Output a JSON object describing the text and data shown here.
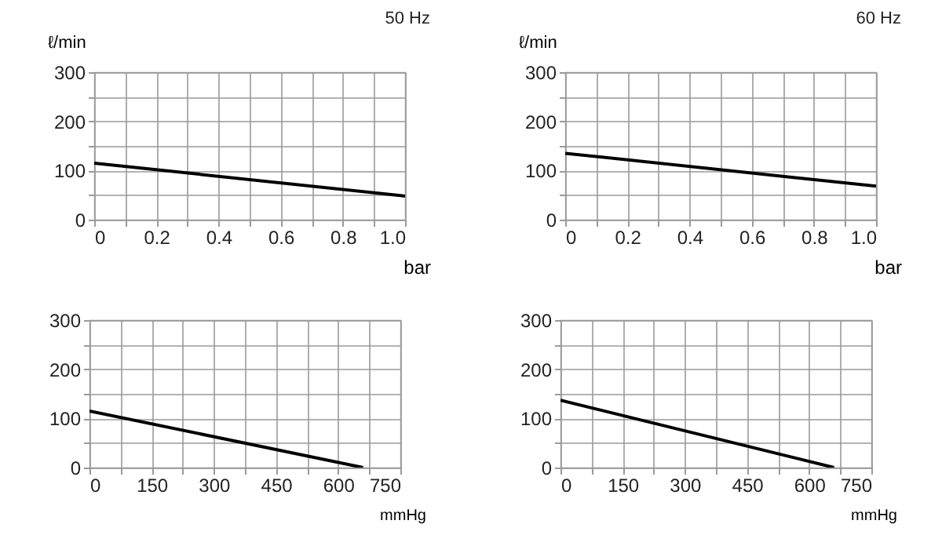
{
  "chart_data": [
    {
      "type": "line",
      "title": "50 Hz",
      "ylabel": "ℓ/min",
      "xlabel": "bar",
      "x": [
        0,
        1.0
      ],
      "series": [
        {
          "color": "#000000",
          "values": [
            115,
            48
          ]
        }
      ],
      "xlim": [
        0,
        1.0
      ],
      "ylim": [
        0,
        300
      ],
      "xticks": [
        0,
        {
          "value": 0.1,
          "label": null
        },
        0.2,
        {
          "value": 0.3,
          "label": null
        },
        0.4,
        {
          "value": 0.5,
          "label": null
        },
        0.6,
        {
          "value": 0.7,
          "label": null
        },
        0.8,
        {
          "value": 0.9,
          "label": null
        },
        "1.0"
      ],
      "yticks": [
        0,
        {
          "value": 50,
          "label": null
        },
        100,
        {
          "value": 150,
          "label": null
        },
        200,
        {
          "value": 250,
          "label": null
        },
        300
      ],
      "grid": true
    },
    {
      "type": "line",
      "title": "60 Hz",
      "ylabel": "ℓ/min",
      "xlabel": "bar",
      "x": [
        0,
        1.0
      ],
      "series": [
        {
          "color": "#000000",
          "values": [
            135,
            68
          ]
        }
      ],
      "xlim": [
        0,
        1.0
      ],
      "ylim": [
        0,
        300
      ],
      "xticks": [
        0,
        {
          "value": 0.1,
          "label": null
        },
        0.2,
        {
          "value": 0.3,
          "label": null
        },
        0.4,
        {
          "value": 0.5,
          "label": null
        },
        0.6,
        {
          "value": 0.7,
          "label": null
        },
        0.8,
        {
          "value": 0.9,
          "label": null
        },
        "1.0"
      ],
      "yticks": [
        0,
        {
          "value": 50,
          "label": null
        },
        100,
        {
          "value": 150,
          "label": null
        },
        200,
        {
          "value": 250,
          "label": null
        },
        300
      ],
      "grid": true
    },
    {
      "type": "line",
      "xlabel": "mmHg",
      "x": [
        0,
        660
      ],
      "series": [
        {
          "color": "#000000",
          "values": [
            115,
            0
          ]
        }
      ],
      "xlim": [
        0,
        750
      ],
      "ylim": [
        0,
        300
      ],
      "xticks": [
        0,
        {
          "value": 75,
          "label": null
        },
        150,
        {
          "value": 225,
          "label": null
        },
        300,
        {
          "value": 375,
          "label": null
        },
        450,
        {
          "value": 525,
          "label": null
        },
        600,
        {
          "value": 675,
          "label": null
        },
        750
      ],
      "yticks": [
        0,
        {
          "value": 50,
          "label": null
        },
        100,
        {
          "value": 150,
          "label": null
        },
        200,
        {
          "value": 250,
          "label": null
        },
        300
      ],
      "grid": true
    },
    {
      "type": "line",
      "xlabel": "mmHg",
      "x": [
        0,
        660
      ],
      "series": [
        {
          "color": "#000000",
          "values": [
            137,
            0
          ]
        }
      ],
      "xlim": [
        0,
        750
      ],
      "ylim": [
        0,
        300
      ],
      "xticks": [
        0,
        {
          "value": 75,
          "label": null
        },
        150,
        {
          "value": 225,
          "label": null
        },
        300,
        {
          "value": 375,
          "label": null
        },
        450,
        {
          "value": 525,
          "label": null
        },
        600,
        {
          "value": 675,
          "label": null
        },
        750
      ],
      "yticks": [
        0,
        {
          "value": 50,
          "label": null
        },
        100,
        {
          "value": 150,
          "label": null
        },
        200,
        {
          "value": 250,
          "label": null
        },
        300
      ],
      "grid": true
    }
  ]
}
